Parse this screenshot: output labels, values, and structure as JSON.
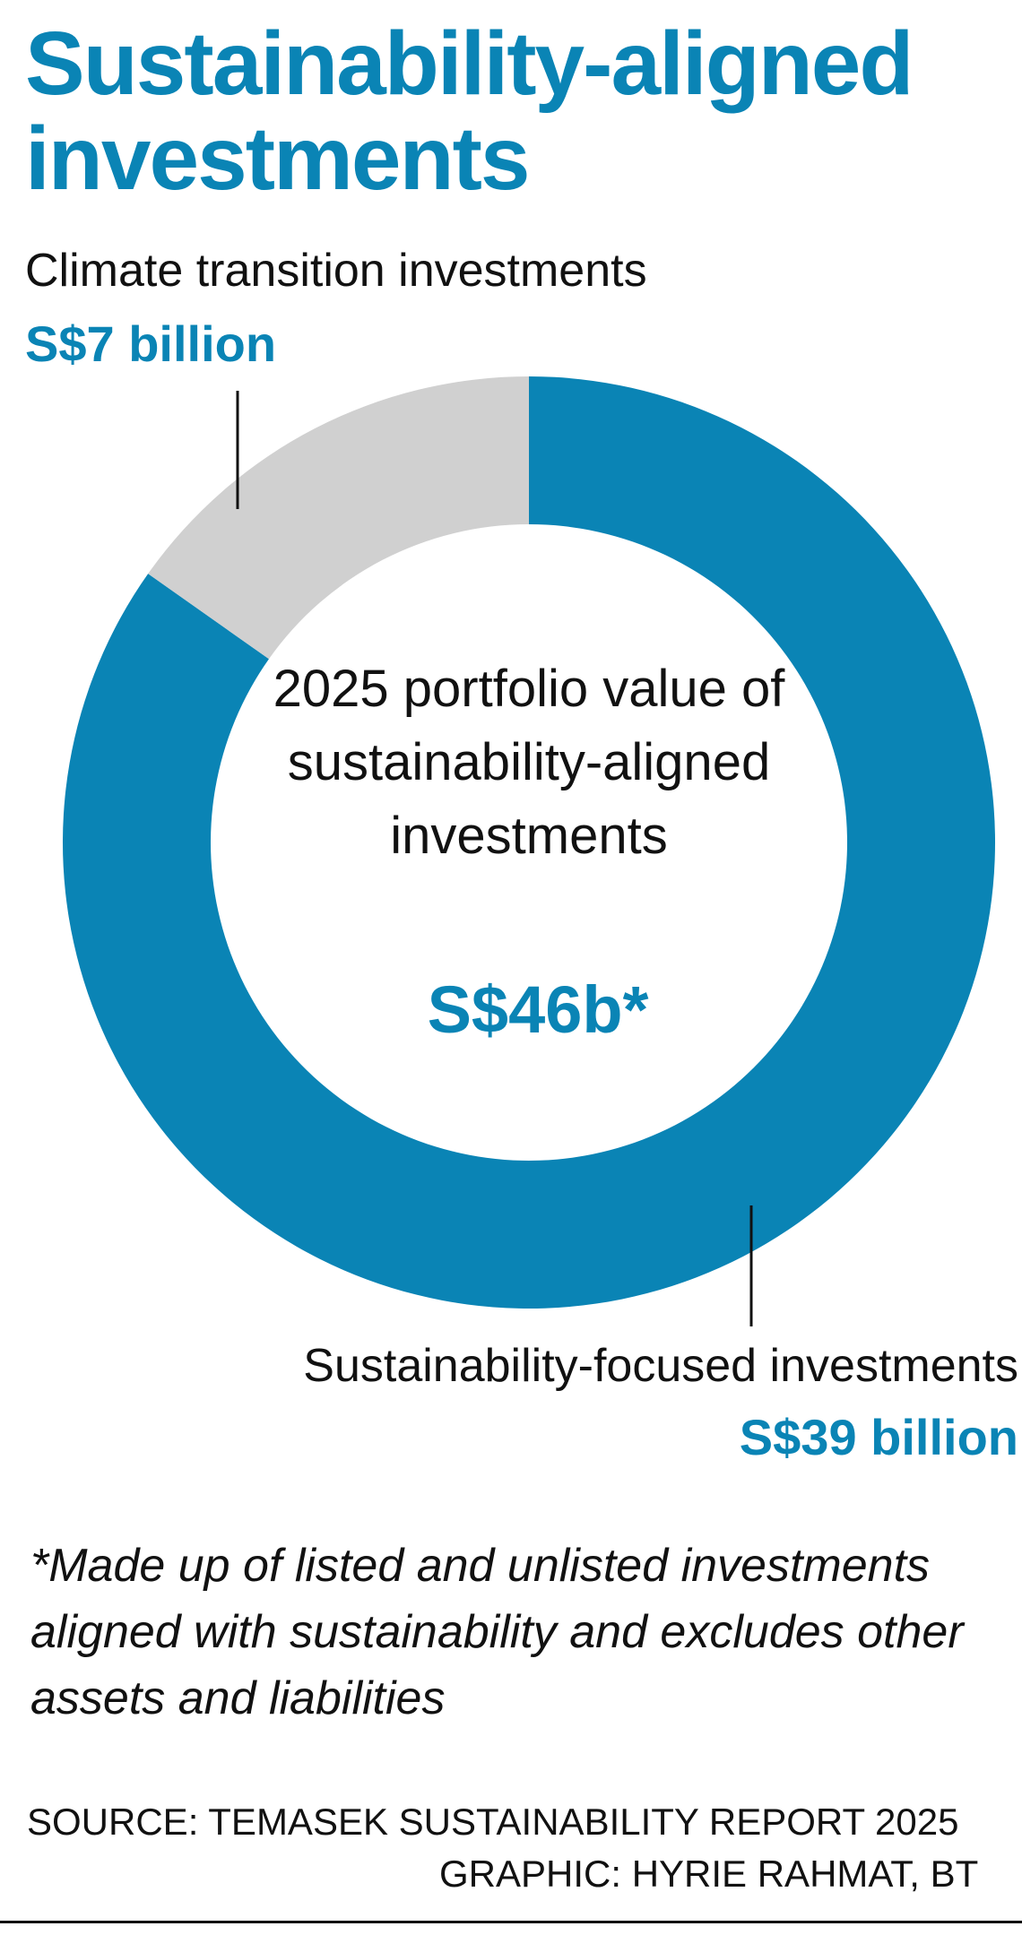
{
  "title": "Sustainability-aligned investments",
  "colors": {
    "accent": "#0A84B5",
    "secondary": "#D0D0D0",
    "text": "#111111"
  },
  "chart_data": {
    "type": "pie",
    "variant": "donut",
    "start": "top",
    "direction": "clockwise",
    "center_label": "2025 portfolio value of sustainability-aligned investments",
    "center_value": "S$46b*",
    "unit": "S$ billion",
    "slices": [
      {
        "name": "Sustainability-focused investments",
        "value": 39,
        "value_label": "S$39 billion",
        "color": "#0A84B5"
      },
      {
        "name": "Climate transition investments",
        "value": 7,
        "value_label": "S$7 billion",
        "color": "#D0D0D0"
      }
    ]
  },
  "footnote": "*Made up of listed and unlisted investments aligned with sustainability and excludes other assets and liabilities",
  "source": "SOURCE: TEMASEK SUSTAINABILITY REPORT 2025",
  "credit": "GRAPHIC: HYRIE RAHMAT, BT"
}
